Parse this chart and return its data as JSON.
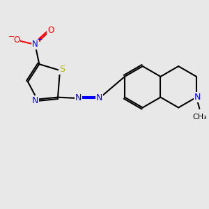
{
  "bg_color": "#e8e8e8",
  "bond_color": "#000000",
  "atom_colors": {
    "N": "#0000ff",
    "O": "#ff0000",
    "S": "#b8b800",
    "C": "#000000"
  },
  "line_width": 1.5
}
